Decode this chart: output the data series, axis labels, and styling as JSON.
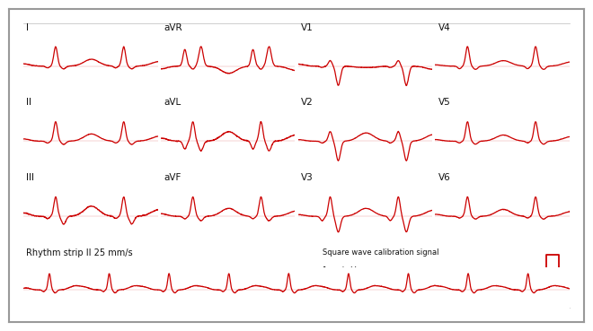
{
  "background_color": "#ffffff",
  "line_color": "#cc0000",
  "border_color": "#999999",
  "text_color": "#111111",
  "fig_width": 6.4,
  "fig_height": 3.49,
  "panel_labels": [
    "I",
    "aVR",
    "V1",
    "V4",
    "II",
    "aVL",
    "V2",
    "V5",
    "III",
    "aVF",
    "V3",
    "V6"
  ],
  "panel_cols": [
    0,
    1,
    2,
    3,
    0,
    1,
    2,
    3,
    0,
    1,
    2,
    3
  ],
  "panel_rows": [
    0,
    0,
    0,
    0,
    1,
    1,
    1,
    1,
    2,
    2,
    2,
    2
  ],
  "rhythm_label": "Rhythm strip II 25 mm/s",
  "cal_label1": "Square wave calibration signal",
  "cal_label2": "1 cm/mV"
}
